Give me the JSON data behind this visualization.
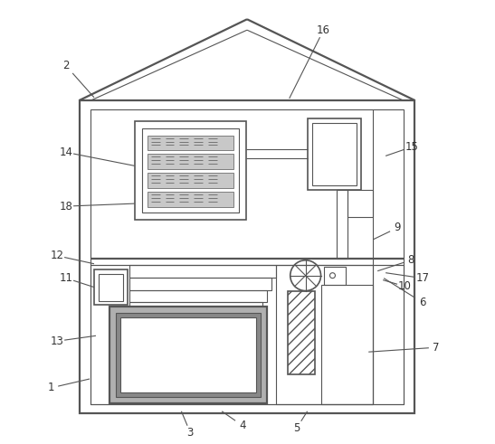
{
  "background_color": "#ffffff",
  "line_color": "#555555",
  "lc": "#555555",
  "fig_width": 5.47,
  "fig_height": 4.91,
  "dpi": 100,
  "labels": [
    [
      1,
      55,
      430,
      98,
      420
    ],
    [
      2,
      72,
      72,
      103,
      107
    ],
    [
      3,
      210,
      480,
      200,
      456
    ],
    [
      4,
      268,
      472,
      245,
      456
    ],
    [
      5,
      328,
      475,
      340,
      456
    ],
    [
      6,
      468,
      335,
      425,
      308
    ],
    [
      7,
      483,
      385,
      408,
      390
    ],
    [
      8,
      455,
      288,
      418,
      300
    ],
    [
      9,
      440,
      252,
      413,
      265
    ],
    [
      10,
      448,
      317,
      424,
      310
    ],
    [
      11,
      72,
      308,
      103,
      318
    ],
    [
      12,
      62,
      283,
      103,
      292
    ],
    [
      13,
      62,
      378,
      105,
      372
    ],
    [
      14,
      72,
      168,
      148,
      183
    ],
    [
      15,
      456,
      162,
      427,
      172
    ],
    [
      16,
      358,
      32,
      320,
      108
    ],
    [
      17,
      468,
      308,
      427,
      302
    ],
    [
      18,
      72,
      228,
      148,
      225
    ]
  ]
}
